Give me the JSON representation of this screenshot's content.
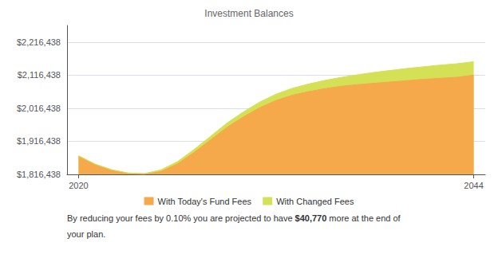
{
  "chart_data": {
    "type": "area",
    "title": "Investment Balances",
    "x": [
      2020,
      2021,
      2022,
      2023,
      2024,
      2025,
      2026,
      2027,
      2028,
      2029,
      2030,
      2031,
      2032,
      2033,
      2034,
      2035,
      2036,
      2037,
      2038,
      2039,
      2040,
      2041,
      2042,
      2043,
      2044
    ],
    "series": [
      {
        "name": "With Today's Fund Fees",
        "color": "#F5A94A",
        "values": [
          1870000,
          1845000,
          1828000,
          1818000,
          1816438,
          1825000,
          1848000,
          1882000,
          1920000,
          1958000,
          1990000,
          2018000,
          2040000,
          2056000,
          2067000,
          2076000,
          2083000,
          2088000,
          2092000,
          2096000,
          2100000,
          2104000,
          2107000,
          2110000,
          2116438
        ]
      },
      {
        "name": "With Changed Fees",
        "color": "#D4E157",
        "values": [
          1873000,
          1848000,
          1831000,
          1821000,
          1819000,
          1830000,
          1855000,
          1891000,
          1931000,
          1971000,
          2005000,
          2035000,
          2059000,
          2077000,
          2090000,
          2101000,
          2110000,
          2118000,
          2125000,
          2131000,
          2137000,
          2142000,
          2147000,
          2151000,
          2157208
        ]
      }
    ],
    "xlim": [
      2019.3,
      2044.7
    ],
    "xticks": [
      2020,
      2044
    ],
    "ylim": [
      1816438,
      2266438
    ],
    "yticks": [
      {
        "value": 1816438,
        "label": "$1,816,438"
      },
      {
        "value": 1916438,
        "label": "$1,916,438"
      },
      {
        "value": 2016438,
        "label": "$2,016,438"
      },
      {
        "value": 2116438,
        "label": "$2,116,438"
      },
      {
        "value": 2216438,
        "label": "$2,216,438"
      }
    ],
    "grid": true,
    "legend": "bottom",
    "annotations": [
      "By reducing your fees by 0.10% you are projected to have ",
      "$40,770",
      " more at the end of",
      "your plan."
    ]
  }
}
